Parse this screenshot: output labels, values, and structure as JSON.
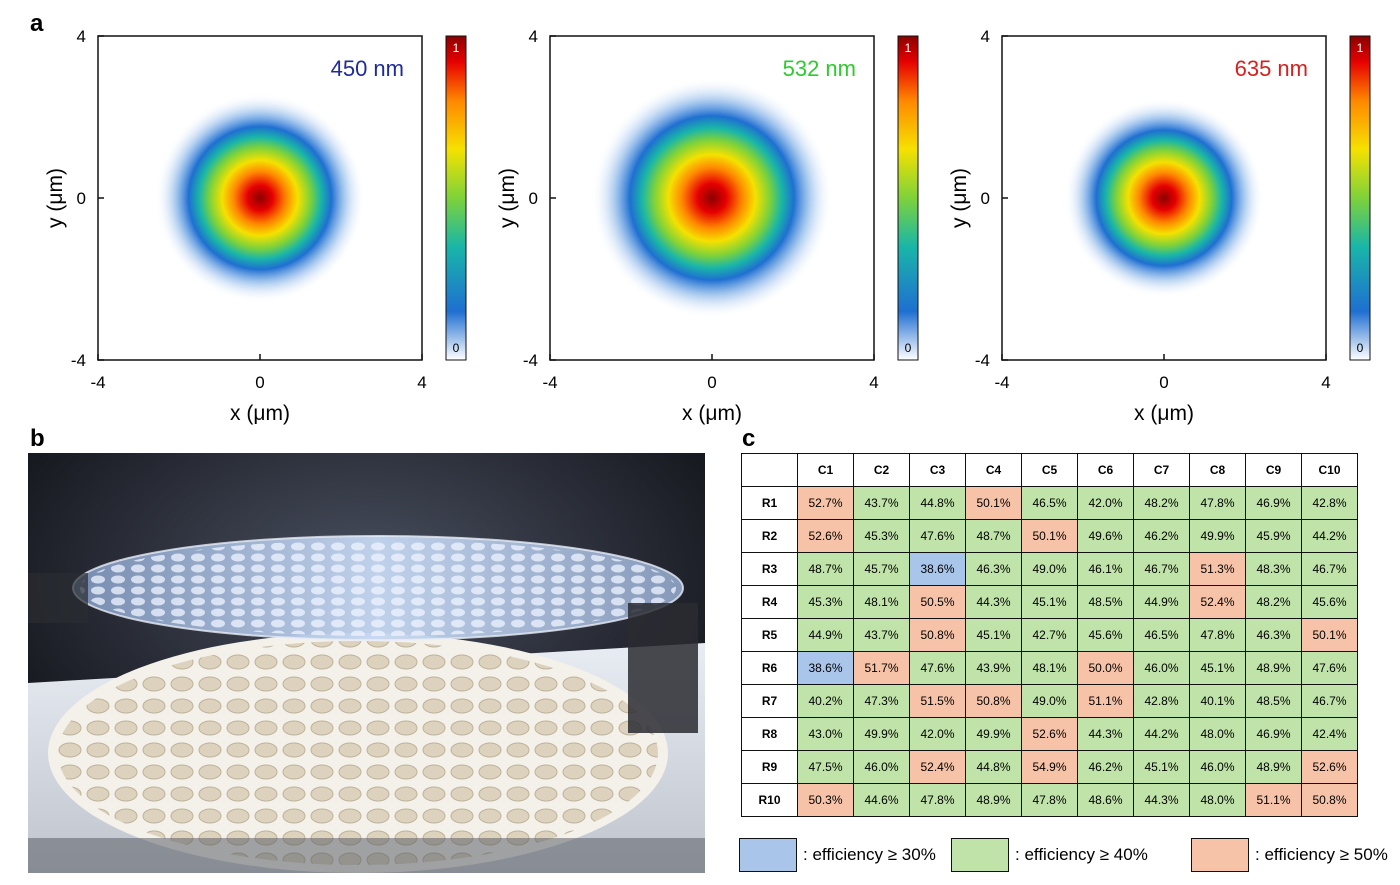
{
  "panel_a": {
    "letter": "a",
    "plots": [
      {
        "wavelength": "450 nm",
        "color": "#1f2a9c",
        "ylabel": "y (μm)",
        "xlabel": "x (μm)",
        "xticks": [
          "-4",
          "0",
          "4"
        ],
        "yticks": [
          "4",
          "0",
          "-4"
        ],
        "cb_max": "1",
        "cb_min": "0"
      },
      {
        "wavelength": "532 nm",
        "color": "#2ecb2e",
        "ylabel": "y (μm)",
        "xlabel": "x (μm)",
        "xticks": [
          "-4",
          "0",
          "4"
        ],
        "yticks": [
          "4",
          "0",
          "-4"
        ],
        "cb_max": "1",
        "cb_min": "0"
      },
      {
        "wavelength": "635 nm",
        "color": "#d61f1f",
        "ylabel": "y (μm)",
        "xlabel": "x (μm)",
        "xticks": [
          "-4",
          "0",
          "4"
        ],
        "yticks": [
          "4",
          "0",
          "-4"
        ],
        "cb_max": "1",
        "cb_min": "0"
      }
    ]
  },
  "panel_b": {
    "letter": "b"
  },
  "panel_c": {
    "letter": "c",
    "columns": [
      "C1",
      "C2",
      "C3",
      "C4",
      "C5",
      "C6",
      "C7",
      "C8",
      "C9",
      "C10"
    ],
    "rows": [
      {
        "label": "R1",
        "cells": [
          "52.7%",
          "43.7%",
          "44.8%",
          "50.1%",
          "46.5%",
          "42.0%",
          "48.2%",
          "47.8%",
          "46.9%",
          "42.8%"
        ],
        "classes": [
          "o",
          "g",
          "g",
          "o",
          "g",
          "g",
          "g",
          "g",
          "g",
          "g"
        ]
      },
      {
        "label": "R2",
        "cells": [
          "52.6%",
          "45.3%",
          "47.6%",
          "48.7%",
          "50.1%",
          "49.6%",
          "46.2%",
          "49.9%",
          "45.9%",
          "44.2%"
        ],
        "classes": [
          "o",
          "g",
          "g",
          "g",
          "o",
          "g",
          "g",
          "g",
          "g",
          "g"
        ]
      },
      {
        "label": "R3",
        "cells": [
          "48.7%",
          "45.7%",
          "38.6%",
          "46.3%",
          "49.0%",
          "46.1%",
          "46.7%",
          "51.3%",
          "48.3%",
          "46.7%"
        ],
        "classes": [
          "g",
          "g",
          "b",
          "g",
          "g",
          "g",
          "g",
          "o",
          "g",
          "g"
        ]
      },
      {
        "label": "R4",
        "cells": [
          "45.3%",
          "48.1%",
          "50.5%",
          "44.3%",
          "45.1%",
          "48.5%",
          "44.9%",
          "52.4%",
          "48.2%",
          "45.6%"
        ],
        "classes": [
          "g",
          "g",
          "o",
          "g",
          "g",
          "g",
          "g",
          "o",
          "g",
          "g"
        ]
      },
      {
        "label": "R5",
        "cells": [
          "44.9%",
          "43.7%",
          "50.8%",
          "45.1%",
          "42.7%",
          "45.6%",
          "46.5%",
          "47.8%",
          "46.3%",
          "50.1%"
        ],
        "classes": [
          "g",
          "g",
          "o",
          "g",
          "g",
          "g",
          "g",
          "g",
          "g",
          "o"
        ]
      },
      {
        "label": "R6",
        "cells": [
          "38.6%",
          "51.7%",
          "47.6%",
          "43.9%",
          "48.1%",
          "50.0%",
          "46.0%",
          "45.1%",
          "48.9%",
          "47.6%"
        ],
        "classes": [
          "b",
          "o",
          "g",
          "g",
          "g",
          "o",
          "g",
          "g",
          "g",
          "g"
        ]
      },
      {
        "label": "R7",
        "cells": [
          "40.2%",
          "47.3%",
          "51.5%",
          "50.8%",
          "49.0%",
          "51.1%",
          "42.8%",
          "40.1%",
          "48.5%",
          "46.7%"
        ],
        "classes": [
          "g",
          "g",
          "o",
          "o",
          "g",
          "o",
          "g",
          "g",
          "g",
          "g"
        ]
      },
      {
        "label": "R8",
        "cells": [
          "43.0%",
          "49.9%",
          "42.0%",
          "49.9%",
          "52.6%",
          "44.3%",
          "44.2%",
          "48.0%",
          "46.9%",
          "42.4%"
        ],
        "classes": [
          "g",
          "g",
          "g",
          "g",
          "o",
          "g",
          "g",
          "g",
          "g",
          "g"
        ]
      },
      {
        "label": "R9",
        "cells": [
          "47.5%",
          "46.0%",
          "52.4%",
          "44.8%",
          "54.9%",
          "46.2%",
          "45.1%",
          "46.0%",
          "48.9%",
          "52.6%"
        ],
        "classes": [
          "g",
          "g",
          "o",
          "g",
          "o",
          "g",
          "g",
          "g",
          "g",
          "o"
        ]
      },
      {
        "label": "R10",
        "cells": [
          "50.3%",
          "44.6%",
          "47.8%",
          "48.9%",
          "47.8%",
          "48.6%",
          "44.3%",
          "48.0%",
          "51.1%",
          "50.8%"
        ],
        "classes": [
          "o",
          "g",
          "g",
          "g",
          "g",
          "g",
          "g",
          "g",
          "o",
          "o"
        ]
      }
    ],
    "legend": [
      {
        "label": ": efficiency ≥ 30%",
        "color": "#a9c6ea"
      },
      {
        "label": ": efficiency ≥ 40%",
        "color": "#bfe3a8"
      },
      {
        "label": ": efficiency ≥ 50%",
        "color": "#f6c3a8"
      }
    ]
  }
}
